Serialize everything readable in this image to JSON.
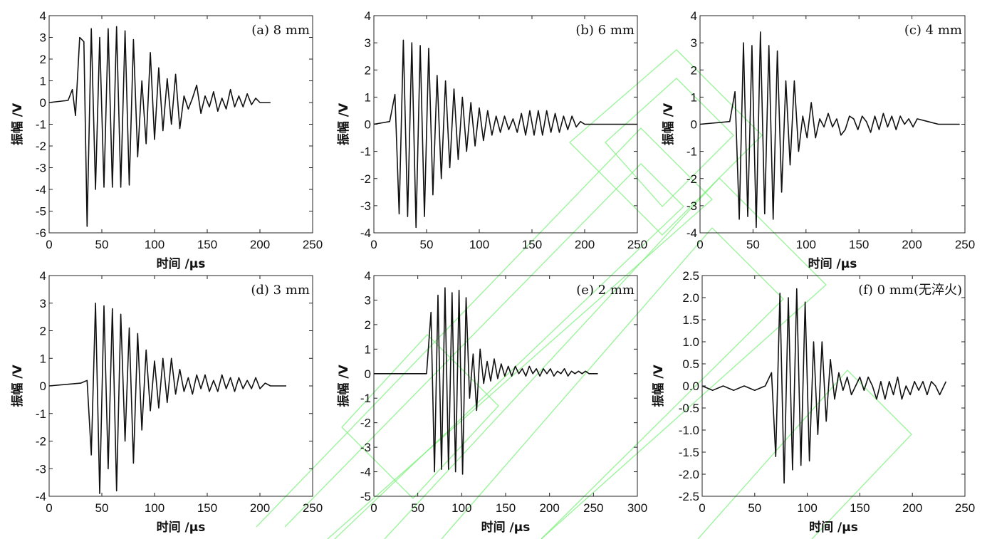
{
  "chart_data": [
    {
      "type": "line",
      "panel_label": "(a) 8 mm",
      "xlabel": "时间 /μs",
      "ylabel": "振幅 /V",
      "xlim": [
        0,
        250
      ],
      "ylim": [
        -6,
        4
      ],
      "x_ticks": [
        0,
        50,
        100,
        150,
        200,
        250
      ],
      "y_ticks": [
        -6,
        -5,
        -4,
        -3,
        -2,
        -1,
        0,
        1,
        2,
        3,
        4
      ],
      "series": [
        {
          "x": [
            0,
            18,
            22,
            25,
            29,
            33,
            36,
            40,
            44,
            48,
            52,
            56,
            60,
            64,
            68,
            72,
            76,
            80,
            84,
            88,
            92,
            96,
            100,
            104,
            108,
            112,
            116,
            120,
            124,
            128,
            132,
            136,
            140,
            144,
            148,
            152,
            156,
            160,
            164,
            168,
            172,
            176,
            180,
            184,
            188,
            192,
            196,
            200,
            210
          ],
          "y": [
            0,
            0.1,
            0.6,
            -0.6,
            3.0,
            2.8,
            -5.7,
            3.4,
            -4.0,
            3.0,
            -3.9,
            3.4,
            -3.9,
            3.5,
            -3.9,
            3.3,
            -3.8,
            2.9,
            -2.5,
            1.0,
            -1.9,
            2.3,
            -1.7,
            1.6,
            -1.3,
            1.1,
            -1.0,
            1.3,
            -1.2,
            0.3,
            -0.3,
            0.2,
            0.8,
            -0.5,
            0.3,
            -0.2,
            0.5,
            -0.4,
            0.2,
            -0.3,
            0.6,
            -0.2,
            0.3,
            -0.2,
            0.4,
            -0.1,
            0.2,
            0.0,
            0.0
          ]
        }
      ]
    },
    {
      "type": "line",
      "panel_label": "(b) 6 mm",
      "xlabel": "",
      "ylabel": "振幅 /V",
      "xlim": [
        0,
        250
      ],
      "ylim": [
        -4,
        4
      ],
      "x_ticks": [
        0,
        50,
        100,
        150,
        200,
        250
      ],
      "y_ticks": [
        -4,
        -3,
        -2,
        -1,
        0,
        1,
        2,
        3,
        4
      ],
      "series": [
        {
          "x": [
            0,
            15,
            20,
            24,
            28,
            32,
            36,
            40,
            44,
            48,
            52,
            56,
            60,
            64,
            68,
            72,
            76,
            80,
            84,
            88,
            92,
            96,
            100,
            104,
            108,
            112,
            116,
            120,
            124,
            128,
            132,
            136,
            140,
            144,
            148,
            152,
            156,
            160,
            164,
            168,
            172,
            176,
            180,
            184,
            188,
            192,
            196,
            200,
            250
          ],
          "y": [
            0,
            0.1,
            1.1,
            -3.3,
            3.1,
            -3.4,
            3.0,
            -3.8,
            2.9,
            -3.4,
            2.8,
            -2.6,
            1.8,
            -2.0,
            1.6,
            -1.6,
            1.3,
            -1.3,
            1.0,
            -1.0,
            0.8,
            -0.8,
            0.6,
            -0.6,
            0.5,
            -0.4,
            0.3,
            -0.3,
            0.3,
            -0.2,
            0.2,
            -0.3,
            0.4,
            -0.4,
            0.5,
            -0.4,
            0.5,
            -0.4,
            0.5,
            -0.3,
            0.4,
            -0.3,
            0.3,
            -0.2,
            0.3,
            -0.1,
            0.1,
            0.0,
            0.0
          ]
        }
      ]
    },
    {
      "type": "line",
      "panel_label": "(c) 4 mm",
      "xlabel": "时间 /μs",
      "ylabel": "振幅 /V",
      "xlim": [
        0,
        250
      ],
      "ylim": [
        -4,
        4
      ],
      "x_ticks": [
        0,
        50,
        100,
        150,
        200,
        250
      ],
      "y_ticks": [
        -4,
        -3,
        -2,
        -1,
        0,
        1,
        2,
        3,
        4
      ],
      "series": [
        {
          "x": [
            0,
            28,
            33,
            37,
            41,
            45,
            49,
            53,
            57,
            61,
            65,
            69,
            73,
            77,
            81,
            85,
            89,
            93,
            97,
            101,
            105,
            109,
            113,
            117,
            121,
            125,
            129,
            133,
            137,
            141,
            145,
            149,
            153,
            157,
            161,
            165,
            169,
            173,
            177,
            181,
            185,
            189,
            193,
            197,
            201,
            205,
            215,
            225,
            245
          ],
          "y": [
            0,
            0.1,
            1.2,
            -3.5,
            3.0,
            -3.4,
            2.9,
            -3.8,
            3.4,
            -3.3,
            2.9,
            -3.5,
            2.7,
            -2.5,
            1.6,
            -1.5,
            1.6,
            -1.0,
            0.3,
            -0.5,
            0.8,
            -0.5,
            0.2,
            -0.1,
            0.4,
            -0.1,
            0.2,
            -0.4,
            -0.2,
            0.3,
            0.2,
            -0.2,
            0.3,
            0.1,
            -0.3,
            0.3,
            -0.2,
            0.4,
            -0.1,
            0.3,
            -0.2,
            0.3,
            0.0,
            0.2,
            -0.1,
            0.2,
            0.1,
            0.0,
            0.0
          ]
        }
      ]
    },
    {
      "type": "line",
      "panel_label": "(d) 3 mm",
      "xlabel": "时间 /μs",
      "ylabel": "振幅 /V",
      "xlim": [
        0,
        250
      ],
      "ylim": [
        -4,
        4
      ],
      "x_ticks": [
        0,
        50,
        100,
        150,
        200,
        250
      ],
      "y_ticks": [
        -4,
        -3,
        -2,
        -1,
        0,
        1,
        2,
        3,
        4
      ],
      "series": [
        {
          "x": [
            0,
            30,
            36,
            40,
            44,
            48,
            52,
            56,
            60,
            64,
            68,
            72,
            76,
            80,
            84,
            88,
            92,
            96,
            100,
            104,
            108,
            112,
            116,
            120,
            124,
            128,
            132,
            136,
            140,
            144,
            148,
            152,
            156,
            160,
            164,
            168,
            172,
            176,
            180,
            184,
            188,
            192,
            196,
            200,
            205,
            210,
            215,
            220,
            225
          ],
          "y": [
            0,
            0.1,
            0.2,
            -2.5,
            3.0,
            -3.9,
            2.9,
            -3.0,
            2.8,
            -3.8,
            2.6,
            -2.0,
            2.1,
            -2.8,
            1.9,
            -1.6,
            1.3,
            -0.9,
            0.9,
            -0.8,
            1.0,
            -0.6,
            1.0,
            -0.3,
            0.6,
            -0.2,
            0.3,
            -0.3,
            0.4,
            -0.1,
            0.4,
            -0.2,
            0.2,
            -0.2,
            0.4,
            -0.1,
            0.3,
            -0.2,
            0.3,
            -0.1,
            0.2,
            -0.1,
            0.3,
            -0.1,
            0.1,
            0.0,
            0.0,
            0.0,
            0.0
          ]
        }
      ]
    },
    {
      "type": "line",
      "panel_label": "(e) 2 mm",
      "xlabel": "时间 /μs",
      "ylabel": "振幅 /V",
      "xlim": [
        0,
        300
      ],
      "ylim": [
        -5,
        4
      ],
      "x_ticks": [
        0,
        50,
        100,
        150,
        200,
        250,
        300
      ],
      "y_ticks": [
        -5,
        -4,
        -3,
        -2,
        -1,
        0,
        1,
        2,
        3,
        4
      ],
      "series": [
        {
          "x": [
            0,
            60,
            65,
            69,
            73,
            77,
            81,
            85,
            89,
            93,
            97,
            101,
            105,
            109,
            113,
            117,
            121,
            125,
            129,
            133,
            137,
            141,
            145,
            149,
            153,
            157,
            161,
            165,
            169,
            173,
            177,
            181,
            185,
            189,
            193,
            197,
            201,
            205,
            209,
            213,
            217,
            221,
            225,
            229,
            233,
            237,
            241,
            245,
            255
          ],
          "y": [
            0,
            0.0,
            2.5,
            -4.0,
            3.2,
            -3.9,
            3.5,
            -3.9,
            3.3,
            -4.0,
            3.4,
            -4.1,
            3.1,
            -1.0,
            0.8,
            -1.5,
            1.0,
            -0.4,
            0.5,
            -0.3,
            0.6,
            -0.2,
            0.4,
            -0.1,
            0.3,
            -0.1,
            0.3,
            0.0,
            0.2,
            -0.1,
            0.3,
            0.0,
            0.2,
            -0.1,
            0.2,
            0.0,
            0.2,
            -0.1,
            0.1,
            0.0,
            0.2,
            -0.1,
            0.1,
            0.0,
            0.1,
            0.0,
            0.1,
            0.0,
            0.0
          ]
        }
      ]
    },
    {
      "type": "line",
      "panel_label": "(f) 0 mm(无淬火)",
      "xlabel": "时间 /μs",
      "ylabel": "振幅 /V",
      "xlim": [
        0,
        250
      ],
      "ylim": [
        -2.5,
        2.5
      ],
      "x_ticks": [
        0,
        50,
        100,
        150,
        200,
        250
      ],
      "y_ticks": [
        -2.5,
        -2.0,
        -1.5,
        -1.0,
        -0.5,
        0.0,
        0.5,
        1.0,
        1.5,
        2.0,
        2.5
      ],
      "series": [
        {
          "x": [
            0,
            10,
            20,
            30,
            40,
            50,
            60,
            66,
            70,
            74,
            78,
            82,
            86,
            90,
            94,
            98,
            102,
            106,
            110,
            114,
            118,
            122,
            126,
            130,
            134,
            138,
            142,
            146,
            150,
            154,
            158,
            162,
            166,
            170,
            174,
            178,
            182,
            186,
            190,
            194,
            198,
            202,
            206,
            210,
            214,
            218,
            222,
            226,
            232
          ],
          "y": [
            0,
            -0.1,
            0.0,
            -0.1,
            0.0,
            -0.1,
            0.0,
            0.3,
            -1.6,
            2.1,
            -2.2,
            2.0,
            -1.9,
            2.2,
            -1.8,
            1.9,
            -1.7,
            1.0,
            -1.1,
            1.0,
            -0.8,
            0.6,
            -0.3,
            0.3,
            -0.1,
            0.2,
            -0.2,
            0.0,
            0.2,
            -0.1,
            0.2,
            0.0,
            -0.3,
            0.1,
            -0.3,
            0.1,
            -0.2,
            0.2,
            -0.3,
            0.0,
            -0.2,
            0.1,
            -0.1,
            0.1,
            -0.2,
            0.1,
            0.0,
            -0.2,
            0.1
          ]
        }
      ]
    }
  ]
}
